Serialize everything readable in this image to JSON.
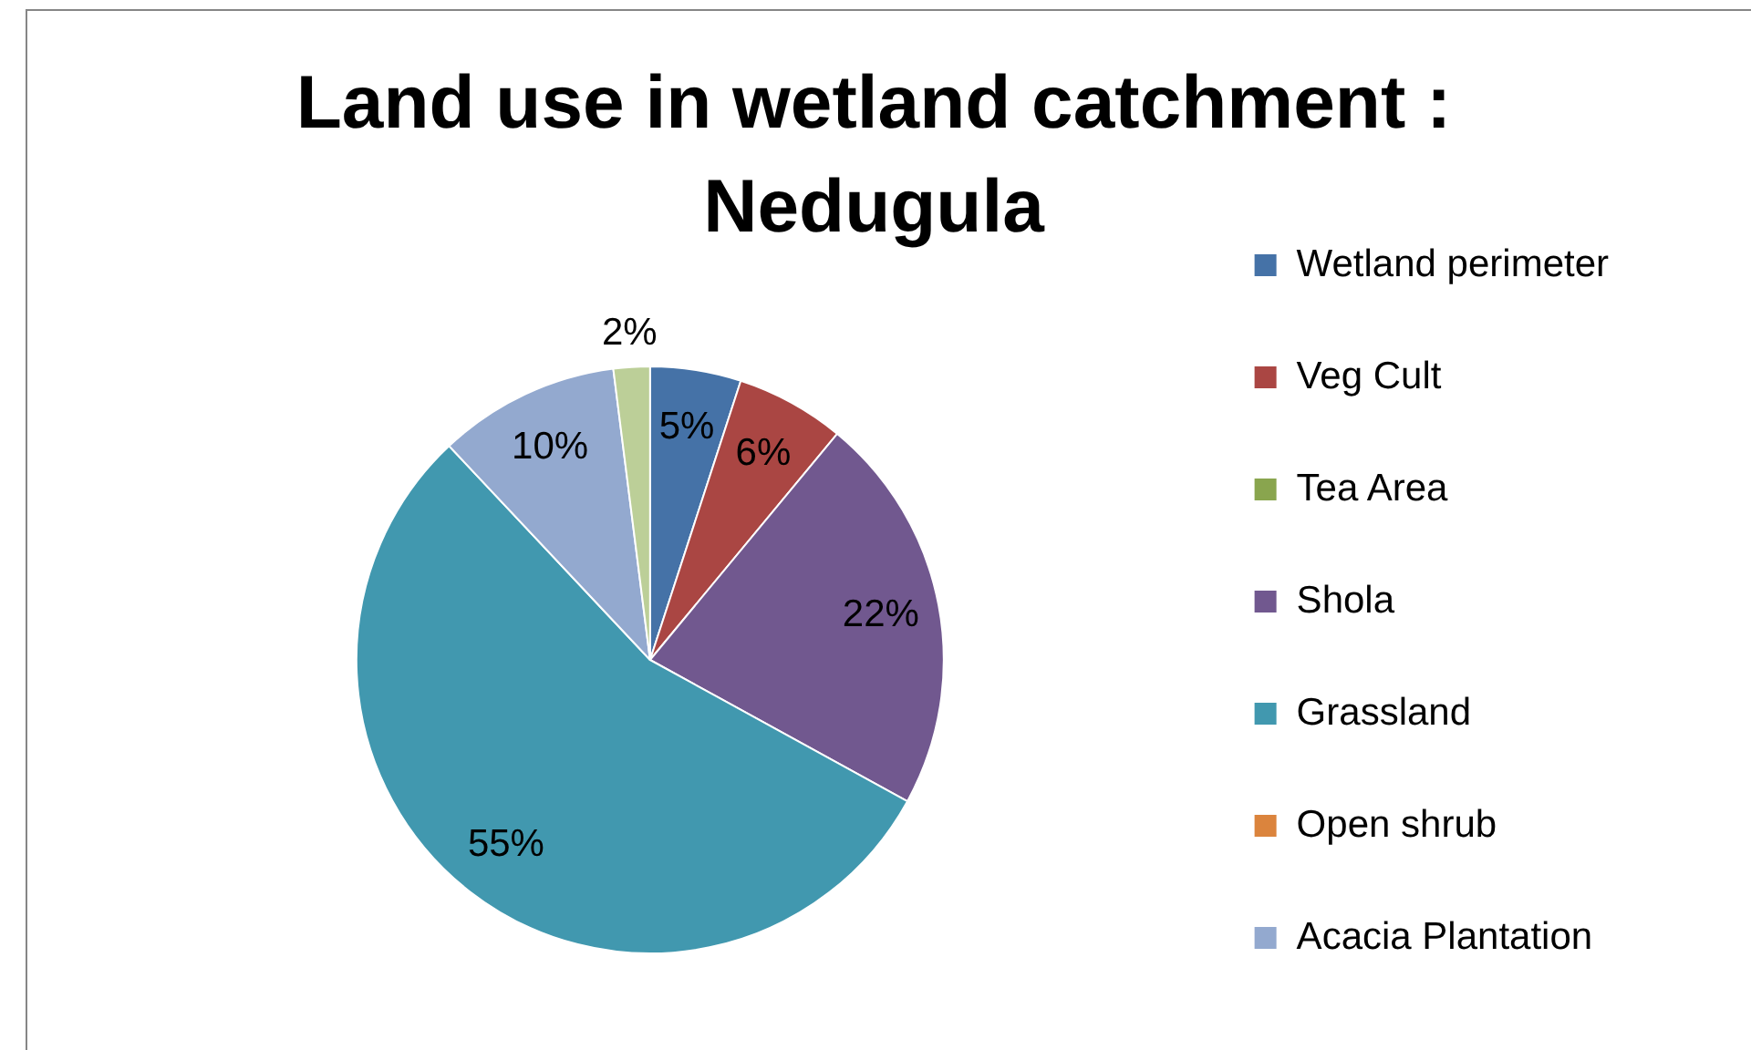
{
  "chart_data": {
    "type": "pie",
    "title": "Land use in wetland catchment : Nedugula",
    "categories": [
      "Wetland perimeter",
      "Veg Cult",
      "Tea Area",
      "Shola",
      "Grassland",
      "Open shrub",
      "Acacia Plantation",
      null
    ],
    "values": [
      5,
      6,
      0,
      22,
      55,
      0,
      10,
      2
    ],
    "colors": [
      "#4572a7",
      "#aa4643",
      "#89a54e",
      "#71588f",
      "#4198af",
      "#db843d",
      "#93a9cf",
      "#bccf98"
    ],
    "value_labels": [
      "5%",
      "6%",
      null,
      "22%",
      "55%",
      null,
      "10%",
      "2%"
    ],
    "legend": "right"
  }
}
